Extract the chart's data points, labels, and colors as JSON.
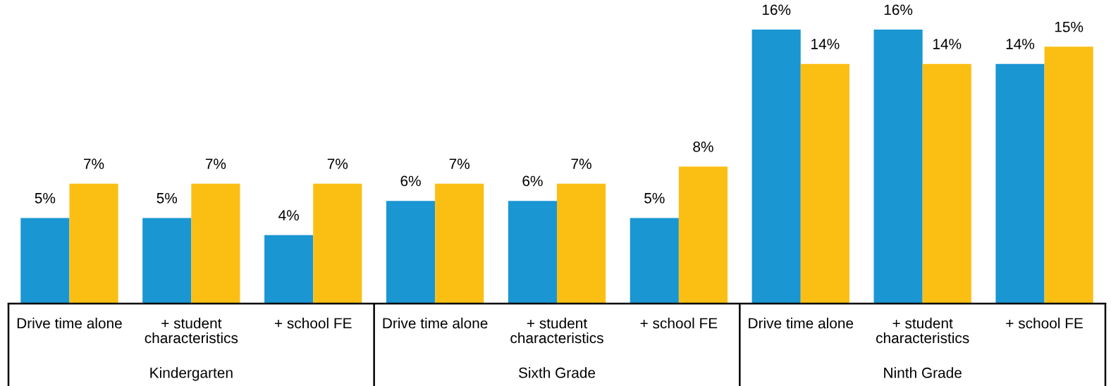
{
  "chart_data": {
    "type": "bar",
    "categories": [
      "Drive time alone",
      "+ student characteristics",
      "+ school FE",
      "Drive time alone",
      "+ student characteristics",
      "+ school FE",
      "Drive time alone",
      "+ student characteristics",
      "+ school FE"
    ],
    "series": [
      {
        "color": "#1a96d3",
        "values": [
          5,
          5,
          4,
          6,
          6,
          5,
          16,
          16,
          14
        ],
        "value_labels": [
          "5%",
          "5%",
          "4%",
          "6%",
          "6%",
          "5%",
          "16%",
          "16%",
          "14%"
        ]
      },
      {
        "color": "#fbbf14",
        "values": [
          7,
          7,
          7,
          7,
          7,
          8,
          14,
          14,
          15
        ],
        "value_labels": [
          "7%",
          "7%",
          "7%",
          "7%",
          "7%",
          "8%",
          "14%",
          "14%",
          "15%"
        ]
      }
    ],
    "annotations": [
      "Kindergarten",
      "Sixth Grade",
      "Ninth Grade"
    ],
    "grid": false,
    "legend": false,
    "tick_labels": "x"
  }
}
